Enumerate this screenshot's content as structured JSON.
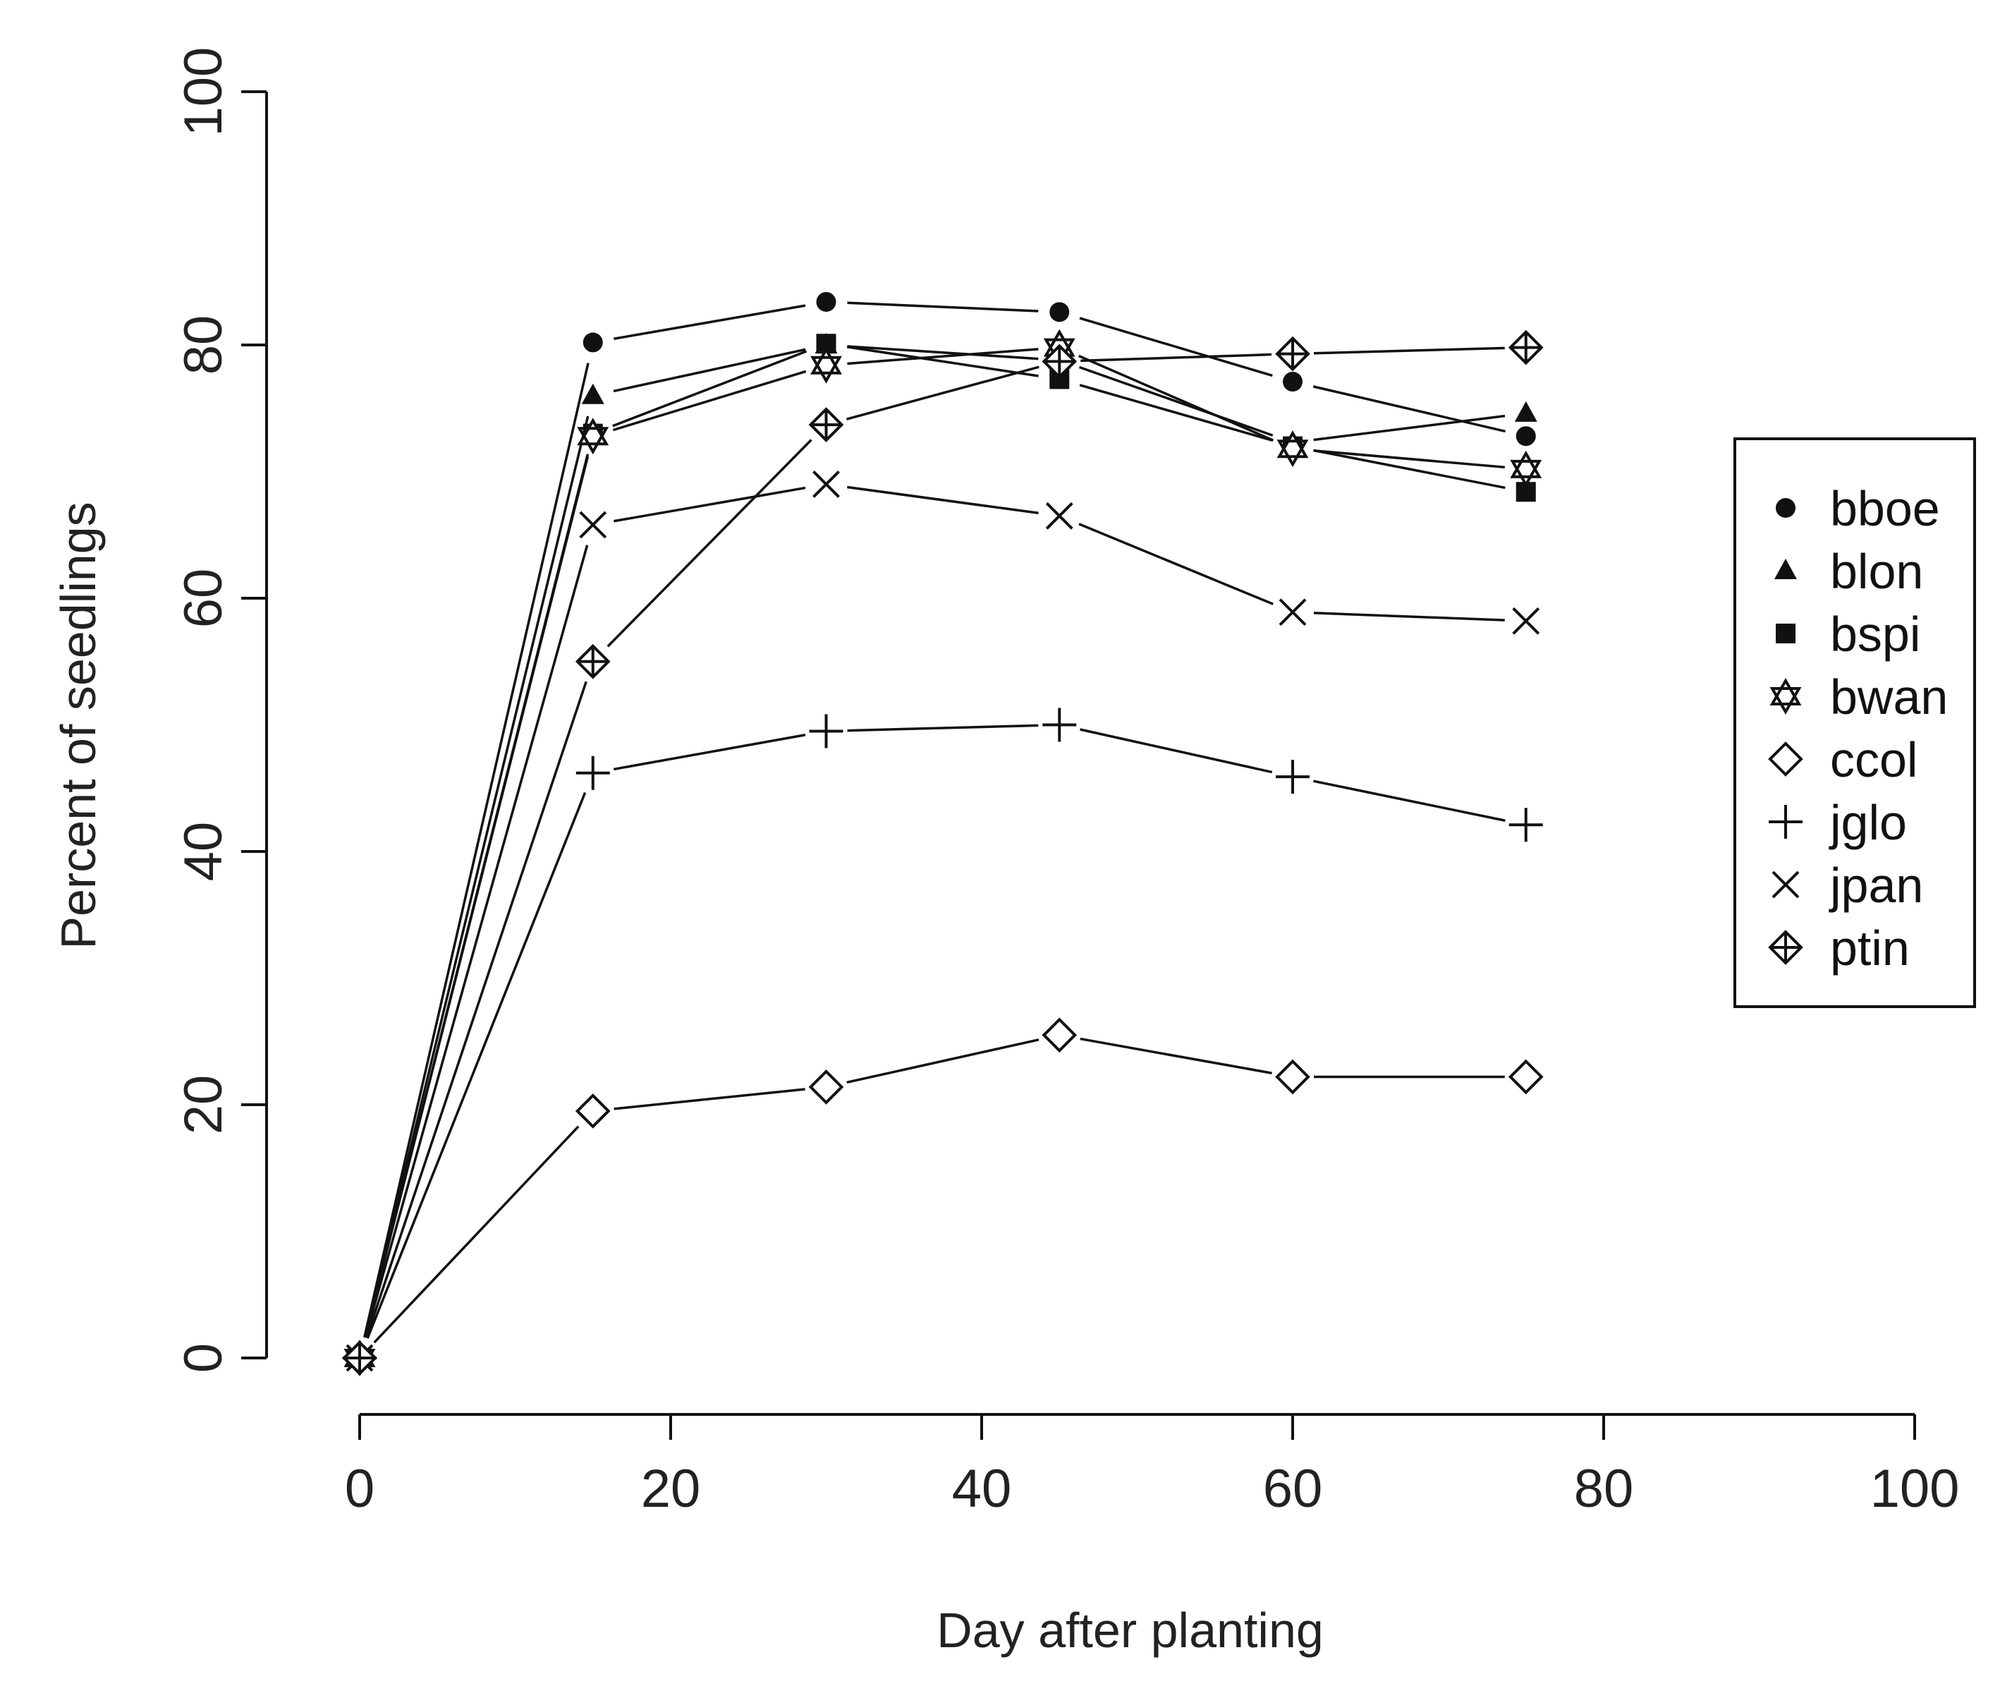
{
  "chart_data": {
    "type": "line",
    "title": "",
    "xlabel": "Day after planting",
    "ylabel": "Percent of seedlings",
    "xlim": [
      0,
      100
    ],
    "ylim": [
      0,
      100
    ],
    "x_ticks": [
      0,
      20,
      40,
      60,
      80,
      100
    ],
    "y_ticks": [
      0,
      20,
      40,
      60,
      80,
      100
    ],
    "x": [
      0,
      15,
      30,
      45,
      60,
      75
    ],
    "legend_position": "right",
    "series": [
      {
        "name": "bboe",
        "marker": "filled-circle",
        "values": [
          0,
          80.2,
          83.4,
          82.6,
          77.1,
          72.8
        ]
      },
      {
        "name": "blon",
        "marker": "filled-triangle",
        "values": [
          0,
          76.0,
          80.0,
          78.8,
          72.3,
          74.6
        ]
      },
      {
        "name": "bspi",
        "marker": "filled-square",
        "values": [
          0,
          73.0,
          80.1,
          77.3,
          72.0,
          68.4
        ]
      },
      {
        "name": "bwan",
        "marker": "star-of-david",
        "values": [
          0,
          72.8,
          78.4,
          79.8,
          71.8,
          70.2
        ]
      },
      {
        "name": "ccol",
        "marker": "open-diamond",
        "values": [
          0,
          19.5,
          21.4,
          25.5,
          22.2,
          22.2
        ]
      },
      {
        "name": "jglo",
        "marker": "plus",
        "values": [
          0,
          46.2,
          49.5,
          50.0,
          45.9,
          42.1
        ]
      },
      {
        "name": "jpan",
        "marker": "cross",
        "values": [
          0,
          65.8,
          69.0,
          66.5,
          58.9,
          58.2
        ]
      },
      {
        "name": "ptin",
        "marker": "diamond-plus",
        "values": [
          0,
          55.0,
          73.7,
          78.7,
          79.3,
          79.8
        ]
      }
    ]
  }
}
